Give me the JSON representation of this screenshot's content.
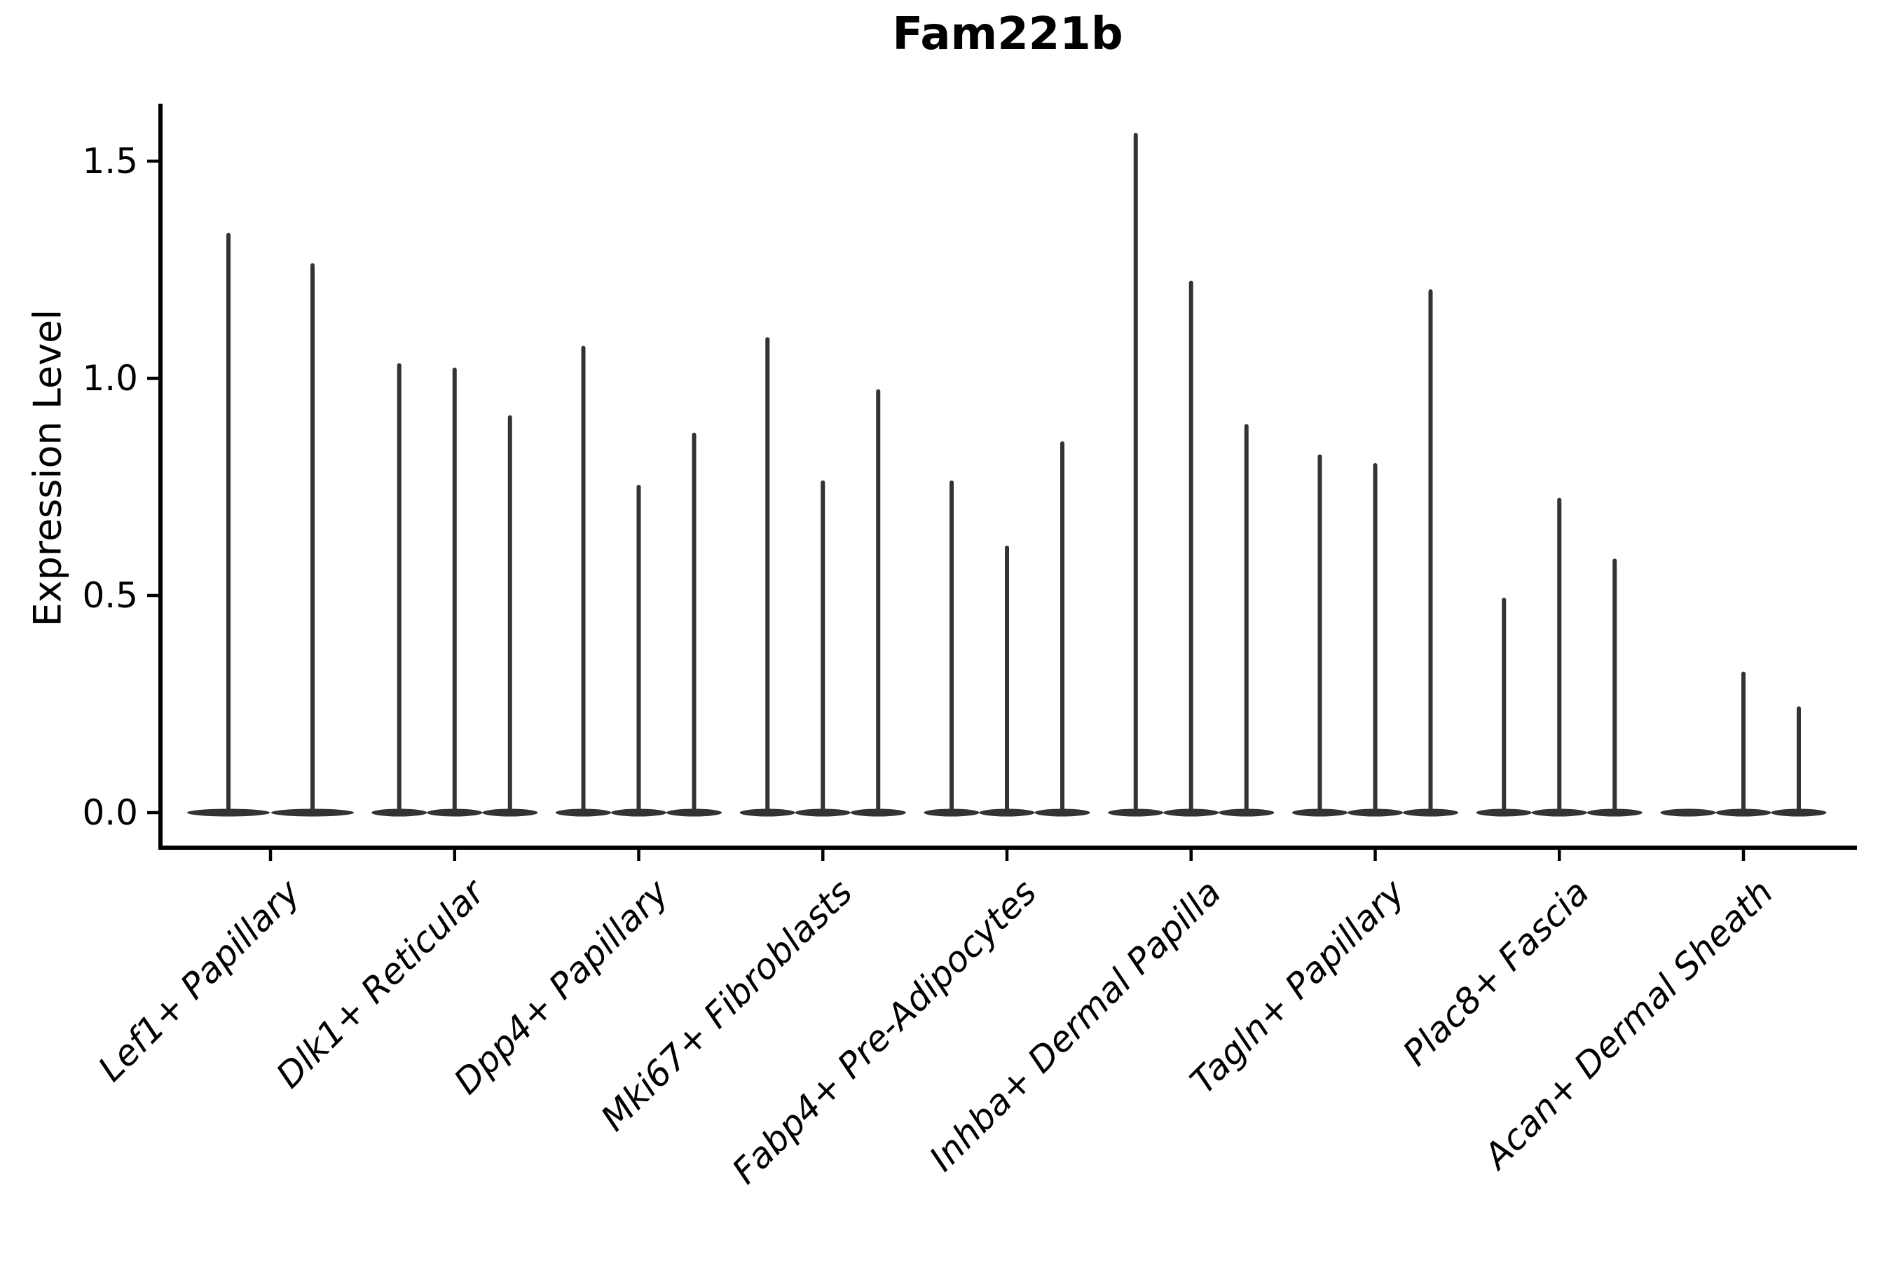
{
  "chart_data": {
    "type": "violin",
    "title": "Fam221b",
    "ylabel": "Expression Level",
    "xlabel": "",
    "ytick_values": [
      0.0,
      0.5,
      1.0,
      1.5
    ],
    "ytick_labels": [
      "0.0",
      "0.5",
      "1.0",
      "1.5"
    ],
    "ylim": [
      -0.08,
      1.63
    ],
    "grid": false,
    "legend": "none",
    "categories": [
      "Lef1+ Papillary",
      "Dlk1+ Reticular",
      "Dpp4+ Papillary",
      "Mki67+ Fibroblasts",
      "Fabp4+ Pre-Adipocytes",
      "Inhba+ Dermal Papilla",
      "Tagln+ Papillary",
      "Plac8+ Fascia",
      "Acan+ Dermal Sheath"
    ],
    "groups": [
      {
        "label": "Lef1+ Papillary",
        "violin_max": [
          1.33,
          1.26
        ]
      },
      {
        "label": "Dlk1+ Reticular",
        "violin_max": [
          1.03,
          1.02,
          0.91
        ]
      },
      {
        "label": "Dpp4+ Papillary",
        "violin_max": [
          1.07,
          0.75,
          0.87
        ]
      },
      {
        "label": "Mki67+ Fibroblasts",
        "violin_max": [
          1.09,
          0.76,
          0.97
        ]
      },
      {
        "label": "Fabp4+ Pre-Adipocytes",
        "violin_max": [
          0.76,
          0.61,
          0.85
        ]
      },
      {
        "label": "Inhba+ Dermal Papilla",
        "violin_max": [
          1.56,
          1.22,
          0.89
        ]
      },
      {
        "label": "Tagln+ Papillary",
        "violin_max": [
          0.82,
          0.8,
          1.2
        ]
      },
      {
        "label": "Plac8+ Fascia",
        "violin_max": [
          0.49,
          0.72,
          0.58
        ]
      },
      {
        "label": "Acan+ Dermal Sheath",
        "violin_max": [
          0.0,
          0.32,
          0.24
        ]
      }
    ],
    "colors": {
      "violin": "#333333",
      "axis": "#000000",
      "text": "#000000",
      "background": "#ffffff"
    }
  }
}
